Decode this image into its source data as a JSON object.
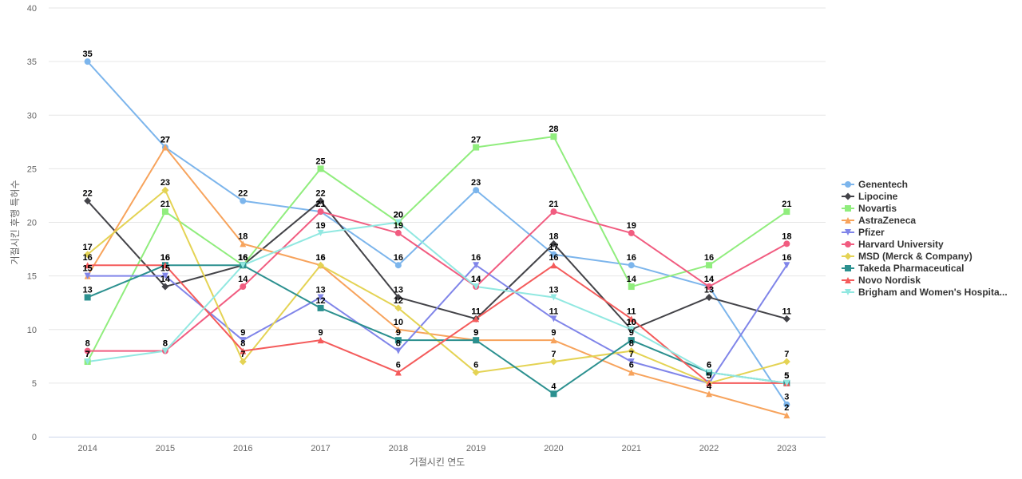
{
  "chart_data": {
    "type": "line",
    "xlabel": "거절시킨 연도",
    "ylabel": "거절시킨 후행 특허수",
    "ylim": [
      0,
      40
    ],
    "yticks": [
      0,
      5,
      10,
      15,
      20,
      25,
      30,
      35,
      40
    ],
    "grid": true,
    "legend_position": "right",
    "categories": [
      "2014",
      "2015",
      "2016",
      "2017",
      "2018",
      "2019",
      "2020",
      "2021",
      "2022",
      "2023"
    ],
    "series": [
      {
        "name": "Genentech",
        "color": "#7cb5ec",
        "marker": "circle",
        "values": [
          35,
          27,
          22,
          21,
          16,
          23,
          17,
          16,
          14,
          3
        ]
      },
      {
        "name": "Lipocine",
        "color": "#434348",
        "marker": "diamond",
        "values": [
          22,
          14,
          16,
          22,
          13,
          11,
          18,
          10,
          13,
          11
        ]
      },
      {
        "name": "Novartis",
        "color": "#90ed7d",
        "marker": "square",
        "values": [
          7,
          21,
          16,
          25,
          20,
          27,
          28,
          14,
          16,
          21
        ]
      },
      {
        "name": "AstraZeneca",
        "color": "#f7a35c",
        "marker": "triangle",
        "values": [
          15,
          27,
          18,
          16,
          10,
          9,
          9,
          6,
          4,
          2
        ]
      },
      {
        "name": "Pfizer",
        "color": "#8085e9",
        "marker": "triangle-down",
        "values": [
          15,
          15,
          9,
          13,
          8,
          16,
          11,
          7,
          5,
          16
        ]
      },
      {
        "name": "Harvard University",
        "color": "#f15c80",
        "marker": "circle",
        "values": [
          8,
          8,
          14,
          21,
          19,
          14,
          21,
          19,
          14,
          18
        ]
      },
      {
        "name": "MSD (Merck & Company)",
        "color": "#e4d354",
        "marker": "diamond",
        "values": [
          17,
          23,
          7,
          16,
          12,
          6,
          7,
          8,
          5,
          7
        ]
      },
      {
        "name": "Takeda Pharmaceutical",
        "color": "#2b908f",
        "marker": "square",
        "values": [
          13,
          16,
          16,
          12,
          9,
          9,
          4,
          9,
          6,
          5
        ]
      },
      {
        "name": "Novo Nordisk",
        "color": "#f45b5b",
        "marker": "triangle",
        "values": [
          16,
          16,
          8,
          9,
          6,
          11,
          16,
          11,
          5,
          5
        ]
      },
      {
        "name": "Brigham and Women's Hospita...",
        "color": "#91e8e1",
        "marker": "triangle-down",
        "values": [
          7,
          8,
          16,
          19,
          20,
          14,
          13,
          10,
          6,
          5
        ]
      }
    ]
  }
}
